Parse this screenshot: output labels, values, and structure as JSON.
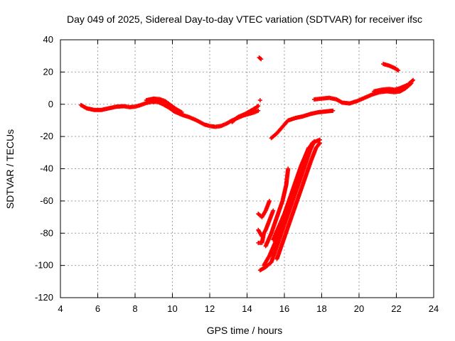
{
  "chart_data": {
    "type": "scatter",
    "title": "Day 049 of 2025, Sidereal Day-to-day VTEC variation (SDTVAR) for receiver ifsc",
    "xlabel": "GPS time / hours",
    "ylabel": "SDTVAR / TECUs",
    "xlim": [
      4,
      24
    ],
    "ylim": [
      -120,
      40
    ],
    "xticks": [
      4,
      6,
      8,
      10,
      12,
      14,
      16,
      18,
      20,
      22,
      24
    ],
    "yticks": [
      -120,
      -100,
      -80,
      -60,
      -40,
      -20,
      0,
      20,
      40
    ],
    "grid": true,
    "marker_color": "#ff0000",
    "series": [
      {
        "name": "main-curve-a",
        "points": [
          [
            5.1,
            -0.5
          ],
          [
            5.4,
            -2.5
          ],
          [
            5.8,
            -3.5
          ],
          [
            6.2,
            -3.5
          ],
          [
            6.6,
            -2.5
          ],
          [
            7.0,
            -1.5
          ],
          [
            7.4,
            -1.2
          ],
          [
            7.7,
            -1.8
          ],
          [
            8.0,
            -1.5
          ],
          [
            8.3,
            -0.5
          ],
          [
            8.6,
            0.8
          ],
          [
            8.9,
            1.5
          ],
          [
            9.2,
            1.5
          ],
          [
            9.5,
            0
          ],
          [
            9.8,
            -2
          ],
          [
            10.1,
            -4.5
          ],
          [
            10.5,
            -6.5
          ],
          [
            10.9,
            -8
          ],
          [
            11.3,
            -10
          ],
          [
            11.7,
            -12.5
          ],
          [
            12.0,
            -13.5
          ],
          [
            12.3,
            -14
          ],
          [
            12.6,
            -13.5
          ],
          [
            12.9,
            -12
          ],
          [
            13.2,
            -10
          ],
          [
            13.5,
            -8.5
          ],
          [
            13.8,
            -7
          ],
          [
            14.1,
            -6
          ],
          [
            14.4,
            -5
          ],
          [
            14.6,
            -4
          ]
        ]
      },
      {
        "name": "main-curve-b",
        "points": [
          [
            8.6,
            2.5
          ],
          [
            9.0,
            3.5
          ],
          [
            9.3,
            3.2
          ],
          [
            9.6,
            2
          ],
          [
            9.9,
            -0.5
          ],
          [
            10.2,
            -3
          ],
          [
            10.5,
            -5
          ],
          [
            13.2,
            -11
          ],
          [
            13.5,
            -8
          ],
          [
            13.9,
            -6
          ],
          [
            14.2,
            -4
          ],
          [
            14.5,
            -2
          ],
          [
            14.6,
            -1
          ]
        ]
      },
      {
        "name": "isolated-points",
        "points": [
          [
            14.65,
            29
          ],
          [
            14.75,
            28
          ],
          [
            14.7,
            2.5
          ]
        ]
      },
      {
        "name": "recovery-curve",
        "points": [
          [
            15.3,
            -21
          ],
          [
            15.6,
            -18
          ],
          [
            15.9,
            -14
          ],
          [
            16.2,
            -10
          ],
          [
            16.6,
            -8.5
          ],
          [
            17.0,
            -7.5
          ],
          [
            17.4,
            -6
          ],
          [
            17.8,
            -5
          ],
          [
            18.2,
            -4.5
          ],
          [
            18.6,
            -4
          ]
        ]
      },
      {
        "name": "upper-right-curve",
        "points": [
          [
            17.6,
            3
          ],
          [
            18.0,
            3.5
          ],
          [
            18.4,
            4
          ],
          [
            18.8,
            3
          ],
          [
            19.1,
            1
          ],
          [
            19.5,
            0.5
          ],
          [
            19.9,
            2
          ],
          [
            20.3,
            4
          ],
          [
            20.7,
            6
          ],
          [
            21.1,
            7.5
          ],
          [
            21.5,
            8
          ],
          [
            21.9,
            7.5
          ],
          [
            22.2,
            8
          ],
          [
            22.5,
            10
          ],
          [
            22.8,
            13
          ]
        ]
      },
      {
        "name": "upper-right-curve-b",
        "points": [
          [
            20.8,
            8
          ],
          [
            21.2,
            9
          ],
          [
            21.6,
            9.5
          ],
          [
            21.9,
            9
          ],
          [
            22.2,
            10
          ],
          [
            22.6,
            12
          ],
          [
            22.9,
            15
          ]
        ]
      },
      {
        "name": "upper-right-short",
        "points": [
          [
            21.3,
            25
          ],
          [
            21.6,
            24
          ],
          [
            21.9,
            22.5
          ],
          [
            22.1,
            21
          ]
        ]
      },
      {
        "name": "depletion-cluster-left",
        "points": [
          [
            14.6,
            -68
          ],
          [
            14.8,
            -70
          ],
          [
            15.0,
            -66
          ],
          [
            15.2,
            -60
          ],
          [
            14.6,
            -78
          ],
          [
            14.8,
            -82
          ],
          [
            15.0,
            -78
          ],
          [
            15.2,
            -72
          ],
          [
            15.4,
            -66
          ],
          [
            14.6,
            -86
          ],
          [
            14.8,
            -86
          ],
          [
            14.9,
            -80
          ]
        ]
      },
      {
        "name": "depletion-line-1",
        "points": [
          [
            14.7,
            -103
          ],
          [
            15.0,
            -101
          ],
          [
            15.3,
            -98
          ],
          [
            15.6,
            -88
          ],
          [
            15.9,
            -78
          ],
          [
            16.2,
            -68
          ],
          [
            16.5,
            -58
          ],
          [
            16.8,
            -48
          ],
          [
            17.1,
            -38
          ],
          [
            17.4,
            -28
          ],
          [
            17.6,
            -23
          ]
        ]
      },
      {
        "name": "depletion-line-2",
        "points": [
          [
            14.9,
            -100
          ],
          [
            15.2,
            -94
          ],
          [
            15.5,
            -86
          ],
          [
            15.8,
            -76
          ],
          [
            16.1,
            -66
          ],
          [
            16.4,
            -56
          ],
          [
            16.7,
            -46
          ],
          [
            17.0,
            -36
          ],
          [
            17.3,
            -27
          ]
        ]
      },
      {
        "name": "depletion-line-3",
        "points": [
          [
            15.0,
            -88
          ],
          [
            15.3,
            -80
          ],
          [
            15.6,
            -70
          ],
          [
            15.9,
            -60
          ],
          [
            16.1,
            -50
          ],
          [
            16.2,
            -40
          ]
        ]
      },
      {
        "name": "depletion-line-4",
        "points": [
          [
            15.4,
            -84
          ],
          [
            15.7,
            -76
          ],
          [
            16.0,
            -68
          ],
          [
            16.3,
            -58
          ],
          [
            16.6,
            -48
          ],
          [
            16.9,
            -38
          ],
          [
            17.2,
            -30
          ],
          [
            17.5,
            -24
          ],
          [
            17.9,
            -22
          ]
        ]
      },
      {
        "name": "depletion-line-5",
        "points": [
          [
            15.6,
            -96
          ],
          [
            15.9,
            -86
          ],
          [
            16.2,
            -76
          ],
          [
            16.5,
            -66
          ],
          [
            16.8,
            -56
          ],
          [
            17.1,
            -46
          ],
          [
            17.4,
            -36
          ],
          [
            17.7,
            -27
          ],
          [
            17.9,
            -24
          ]
        ]
      }
    ]
  }
}
